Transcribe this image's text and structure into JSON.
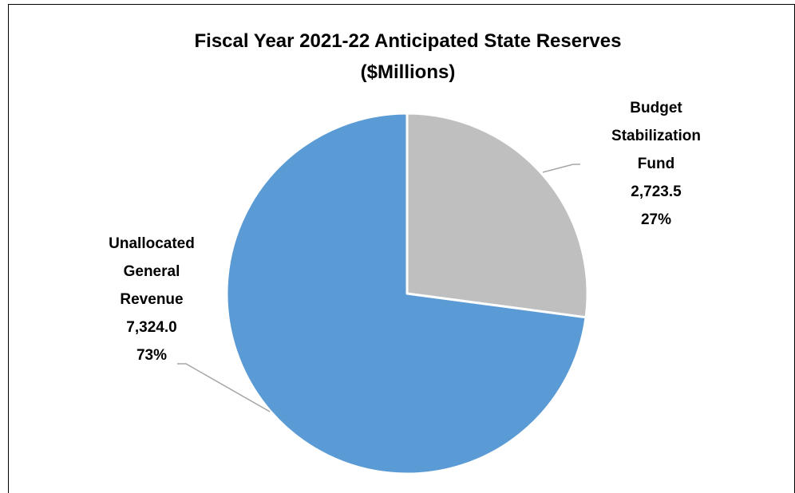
{
  "chart_data": {
    "type": "pie",
    "title": [
      "Fiscal Year 2021-22 Anticipated State Reserves",
      "($Millions)"
    ],
    "slices": [
      {
        "name": "Budget Stabilization Fund",
        "label_lines": [
          "Budget",
          "Stabilization",
          "Fund"
        ],
        "value": 2723.5,
        "value_label": "2,723.5",
        "percent_label": "27%",
        "color": "#BFBFBF"
      },
      {
        "name": "Unallocated General Revenue",
        "label_lines": [
          "Unallocated",
          "General",
          "Revenue"
        ],
        "value": 7324.0,
        "value_label": "7,324.0",
        "percent_label": "73%",
        "color": "#5B9BD5"
      }
    ],
    "start_angle": "12 o'clock",
    "direction": "clockwise",
    "legend": "none"
  },
  "colors": {
    "leader_line": "#A6A6A6",
    "slice_border": "#FFFFFF",
    "frame": "#000000"
  }
}
